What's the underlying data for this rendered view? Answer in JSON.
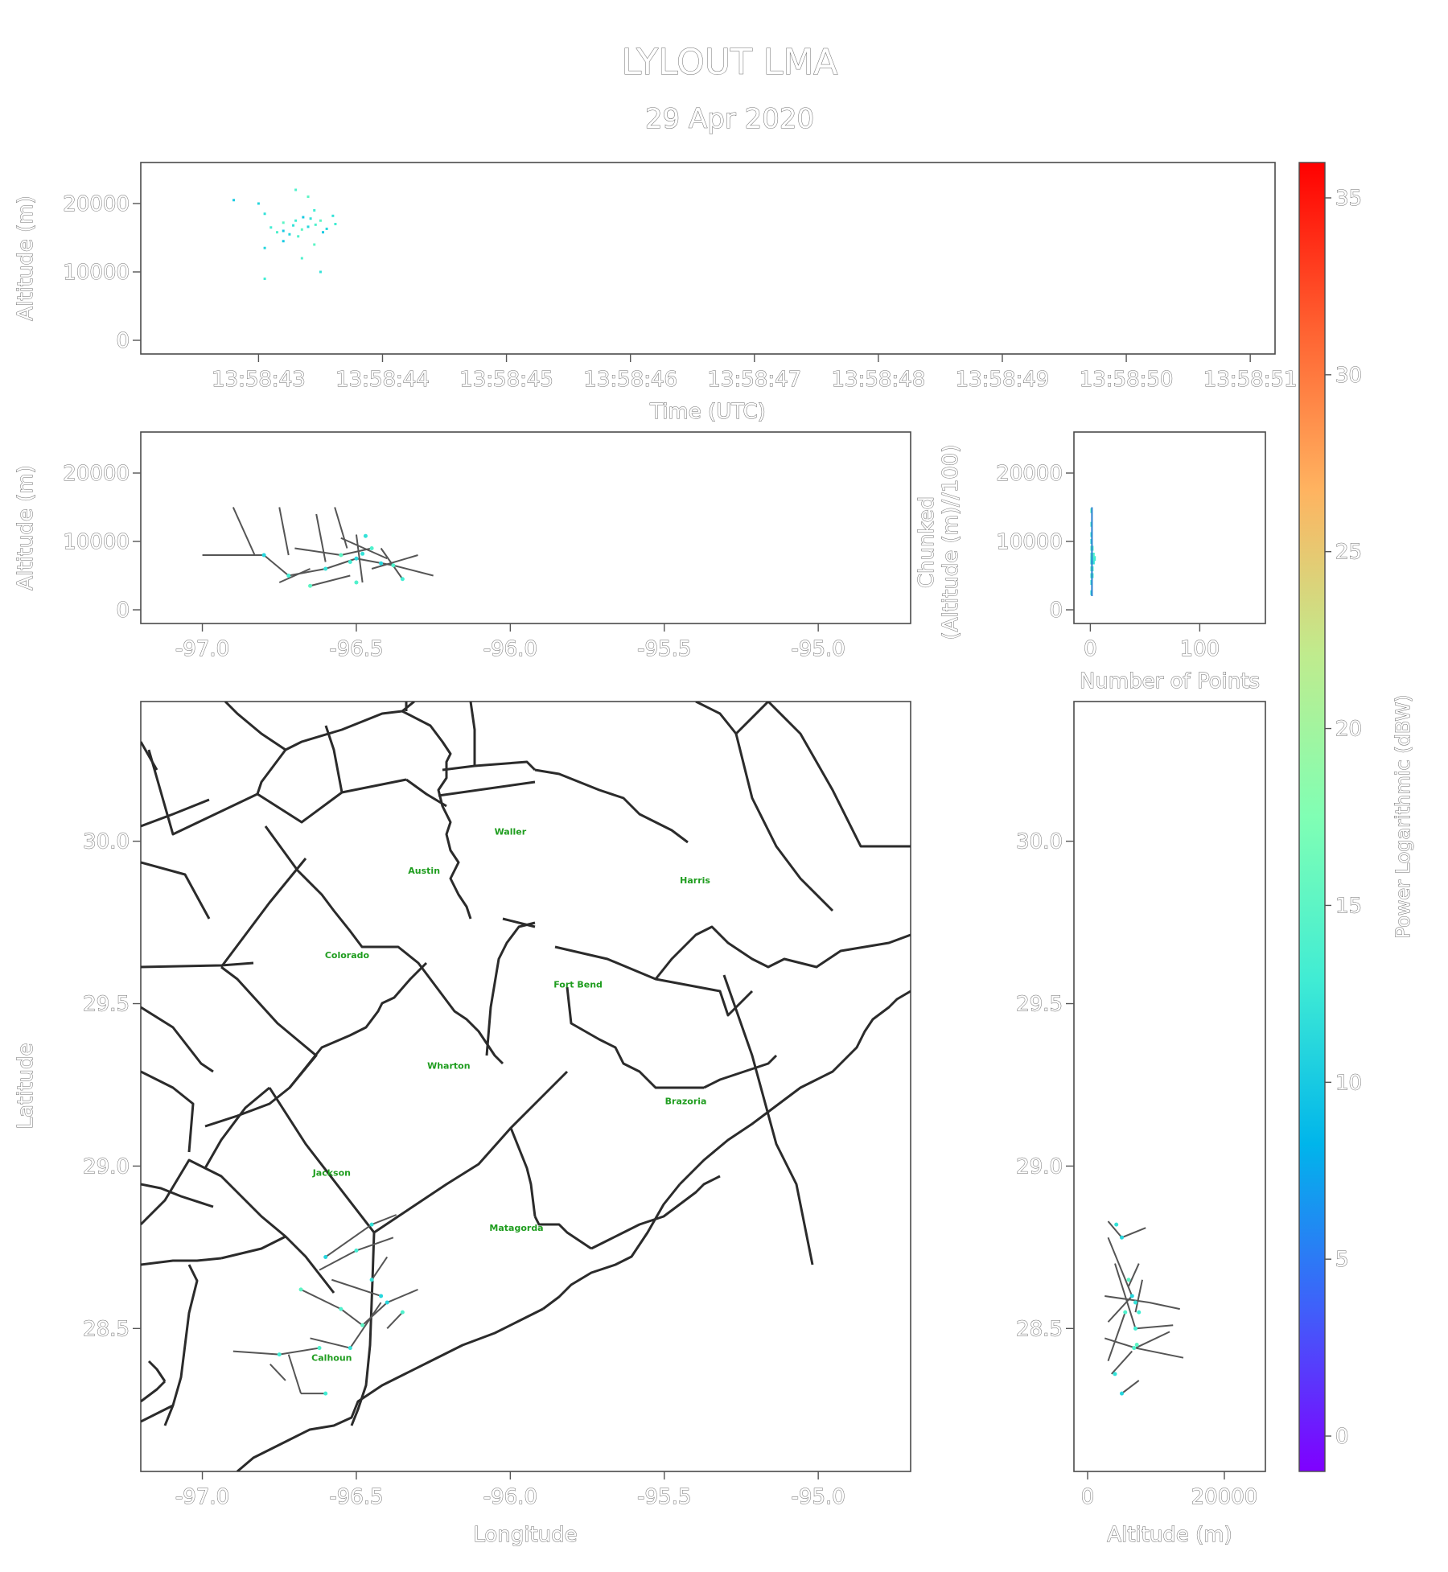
{
  "title": "LYLOUT LMA",
  "subtitle": "29 Apr 2020",
  "chart_data": [
    {
      "type": "scatter",
      "panel": "time-altitude",
      "xlabel": "Time (UTC)",
      "ylabel": "Altitude (m)",
      "x_ticks": [
        "13:58:43",
        "13:58:44",
        "13:58:45",
        "13:58:46",
        "13:58:47",
        "13:58:48",
        "13:58:49",
        "13:58:50",
        "13:58:51"
      ],
      "y_ticks": [
        "0",
        "10000",
        "20000"
      ],
      "ylim": [
        -2000,
        26000
      ],
      "points": [
        {
          "t": 42.8,
          "alt": 20500
        },
        {
          "t": 43.0,
          "alt": 20000
        },
        {
          "t": 43.05,
          "alt": 18500
        },
        {
          "t": 43.1,
          "alt": 16500
        },
        {
          "t": 43.15,
          "alt": 15800
        },
        {
          "t": 43.2,
          "alt": 17200
        },
        {
          "t": 43.2,
          "alt": 16000
        },
        {
          "t": 43.25,
          "alt": 15500
        },
        {
          "t": 43.28,
          "alt": 16800
        },
        {
          "t": 43.3,
          "alt": 17500
        },
        {
          "t": 43.32,
          "alt": 15200
        },
        {
          "t": 43.35,
          "alt": 16200
        },
        {
          "t": 43.36,
          "alt": 18000
        },
        {
          "t": 43.4,
          "alt": 16600
        },
        {
          "t": 43.42,
          "alt": 17800
        },
        {
          "t": 43.45,
          "alt": 19000
        },
        {
          "t": 43.46,
          "alt": 16900
        },
        {
          "t": 43.5,
          "alt": 17500
        },
        {
          "t": 43.52,
          "alt": 15800
        },
        {
          "t": 43.55,
          "alt": 16300
        },
        {
          "t": 43.6,
          "alt": 18200
        },
        {
          "t": 43.62,
          "alt": 17000
        },
        {
          "t": 43.3,
          "alt": 22000
        },
        {
          "t": 43.4,
          "alt": 21000
        },
        {
          "t": 43.2,
          "alt": 14500
        },
        {
          "t": 43.05,
          "alt": 13500
        },
        {
          "t": 43.5,
          "alt": 10000
        },
        {
          "t": 43.05,
          "alt": 9000
        },
        {
          "t": 43.35,
          "alt": 12000
        },
        {
          "t": 43.45,
          "alt": 14000
        }
      ]
    },
    {
      "type": "line",
      "panel": "longitude-altitude",
      "xlabel": "",
      "ylabel": "Altitude (m)",
      "x_ticks": [
        "-97.0",
        "-96.5",
        "-96.0",
        "-95.5",
        "-95.0"
      ],
      "y_ticks": [
        "0",
        "10000",
        "20000"
      ],
      "xlim": [
        -97.2,
        -94.7
      ],
      "ylim": [
        -2000,
        26000
      ],
      "segments": [
        [
          [
            -96.9,
            15000
          ],
          [
            -96.83,
            8000
          ]
        ],
        [
          [
            -96.75,
            15000
          ],
          [
            -96.72,
            8000
          ]
        ],
        [
          [
            -96.63,
            14000
          ],
          [
            -96.6,
            7000
          ]
        ],
        [
          [
            -96.57,
            15000
          ],
          [
            -96.53,
            9000
          ]
        ],
        [
          [
            -97.0,
            8000
          ],
          [
            -96.8,
            8000
          ]
        ],
        [
          [
            -96.8,
            8000
          ],
          [
            -96.72,
            5000
          ]
        ],
        [
          [
            -96.72,
            5000
          ],
          [
            -96.6,
            6000
          ]
        ],
        [
          [
            -96.6,
            6000
          ],
          [
            -96.5,
            7500
          ]
        ],
        [
          [
            -96.5,
            7500
          ],
          [
            -96.38,
            6500
          ]
        ],
        [
          [
            -96.38,
            6500
          ],
          [
            -96.25,
            5000
          ]
        ],
        [
          [
            -96.7,
            9000
          ],
          [
            -96.55,
            8000
          ]
        ],
        [
          [
            -96.55,
            8000
          ],
          [
            -96.45,
            9000
          ]
        ],
        [
          [
            -96.5,
            11000
          ],
          [
            -96.48,
            4000
          ]
        ],
        [
          [
            -96.42,
            9000
          ],
          [
            -96.35,
            4500
          ]
        ],
        [
          [
            -96.65,
            3500
          ],
          [
            -96.52,
            5000
          ]
        ],
        [
          [
            -96.75,
            4000
          ],
          [
            -96.65,
            6000
          ]
        ],
        [
          [
            -96.55,
            10500
          ],
          [
            -96.4,
            7500
          ]
        ],
        [
          [
            -96.45,
            6000
          ],
          [
            -96.3,
            8000
          ]
        ]
      ],
      "points": [
        {
          "lon": -96.5,
          "alt": 7500
        },
        {
          "lon": -96.48,
          "alt": 8200
        },
        {
          "lon": -96.52,
          "alt": 7000
        },
        {
          "lon": -96.45,
          "alt": 9000
        },
        {
          "lon": -96.55,
          "alt": 8000
        },
        {
          "lon": -96.42,
          "alt": 6800
        },
        {
          "lon": -96.6,
          "alt": 6000
        },
        {
          "lon": -96.72,
          "alt": 5000
        },
        {
          "lon": -96.38,
          "alt": 6500
        },
        {
          "lon": -96.65,
          "alt": 3500
        },
        {
          "lon": -96.8,
          "alt": 8000
        },
        {
          "lon": -96.47,
          "alt": 10800
        },
        {
          "lon": -96.35,
          "alt": 4500
        },
        {
          "lon": -96.5,
          "alt": 4000
        }
      ]
    },
    {
      "type": "histogram",
      "panel": "altitude-count",
      "xlabel": "Number of Points",
      "ylabel": "Chunked (Altitude (m)//100)",
      "x_ticks": [
        "0",
        "100"
      ],
      "y_ticks": [
        "0",
        "10000",
        "20000"
      ],
      "xlim": [
        -15,
        160
      ],
      "ylim": [
        -2000,
        26000
      ],
      "bins": [
        {
          "alt": 2500,
          "count": 1
        },
        {
          "alt": 4000,
          "count": 2
        },
        {
          "alt": 5000,
          "count": 3
        },
        {
          "alt": 6000,
          "count": 3
        },
        {
          "alt": 7000,
          "count": 4
        },
        {
          "alt": 7500,
          "count": 5
        },
        {
          "alt": 8000,
          "count": 4
        },
        {
          "alt": 9000,
          "count": 3
        },
        {
          "alt": 10000,
          "count": 2
        },
        {
          "alt": 11000,
          "count": 1
        },
        {
          "alt": 12500,
          "count": 1
        },
        {
          "alt": 14500,
          "count": 1
        }
      ]
    },
    {
      "type": "map",
      "panel": "plan-view",
      "xlabel": "Longitude",
      "ylabel": "Latitude",
      "x_ticks": [
        "-97.0",
        "-96.5",
        "-96.0",
        "-95.5",
        "-95.0"
      ],
      "y_ticks": [
        "30.0",
        "29.5",
        "29.0",
        "28.5"
      ],
      "xlim": [
        -97.2,
        -94.7
      ],
      "ylim": [
        28.06,
        30.43
      ],
      "county_labels": [
        {
          "name": "Waller",
          "lon": -96.0,
          "lat": 30.02
        },
        {
          "name": "Austin",
          "lon": -96.28,
          "lat": 29.9
        },
        {
          "name": "Harris",
          "lon": -95.4,
          "lat": 29.87
        },
        {
          "name": "Colorado",
          "lon": -96.53,
          "lat": 29.64
        },
        {
          "name": "Fort Bend",
          "lon": -95.78,
          "lat": 29.55
        },
        {
          "name": "Wharton",
          "lon": -96.2,
          "lat": 29.3
        },
        {
          "name": "Brazoria",
          "lon": -95.43,
          "lat": 29.19
        },
        {
          "name": "Jackson",
          "lon": -96.58,
          "lat": 28.97
        },
        {
          "name": "Matagorda",
          "lon": -95.98,
          "lat": 28.8
        },
        {
          "name": "Calhoun",
          "lon": -96.58,
          "lat": 28.4
        }
      ],
      "segments": [
        [
          [
            -96.6,
            28.72
          ],
          [
            -96.45,
            28.82
          ]
        ],
        [
          [
            -96.45,
            28.82
          ],
          [
            -96.37,
            28.85
          ]
        ],
        [
          [
            -96.62,
            28.68
          ],
          [
            -96.5,
            28.74
          ]
        ],
        [
          [
            -96.5,
            28.74
          ],
          [
            -96.38,
            28.78
          ]
        ],
        [
          [
            -96.68,
            28.62
          ],
          [
            -96.55,
            28.56
          ]
        ],
        [
          [
            -96.55,
            28.56
          ],
          [
            -96.48,
            28.51
          ]
        ],
        [
          [
            -96.48,
            28.51
          ],
          [
            -96.4,
            28.58
          ]
        ],
        [
          [
            -96.4,
            28.58
          ],
          [
            -96.3,
            28.62
          ]
        ],
        [
          [
            -96.65,
            28.47
          ],
          [
            -96.52,
            28.44
          ]
        ],
        [
          [
            -96.52,
            28.44
          ],
          [
            -96.42,
            28.58
          ]
        ],
        [
          [
            -96.9,
            28.43
          ],
          [
            -96.75,
            28.42
          ]
        ],
        [
          [
            -96.75,
            28.42
          ],
          [
            -96.62,
            28.44
          ]
        ],
        [
          [
            -96.72,
            28.42
          ],
          [
            -96.68,
            28.3
          ]
        ],
        [
          [
            -96.68,
            28.3
          ],
          [
            -96.6,
            28.3
          ]
        ],
        [
          [
            -96.78,
            28.39
          ],
          [
            -96.73,
            28.34
          ]
        ],
        [
          [
            -96.58,
            28.65
          ],
          [
            -96.42,
            28.6
          ]
        ],
        [
          [
            -96.45,
            28.65
          ],
          [
            -96.4,
            28.72
          ]
        ],
        [
          [
            -96.4,
            28.5
          ],
          [
            -96.35,
            28.55
          ]
        ]
      ],
      "points": [
        {
          "lon": -96.6,
          "lat": 28.72
        },
        {
          "lon": -96.45,
          "lat": 28.82
        },
        {
          "lon": -96.5,
          "lat": 28.74
        },
        {
          "lon": -96.55,
          "lat": 28.56
        },
        {
          "lon": -96.48,
          "lat": 28.51
        },
        {
          "lon": -96.4,
          "lat": 28.58
        },
        {
          "lon": -96.52,
          "lat": 28.44
        },
        {
          "lon": -96.75,
          "lat": 28.42
        },
        {
          "lon": -96.62,
          "lat": 28.44
        },
        {
          "lon": -96.68,
          "lat": 28.62
        },
        {
          "lon": -96.42,
          "lat": 28.6
        },
        {
          "lon": -96.45,
          "lat": 28.65
        },
        {
          "lon": -96.6,
          "lat": 28.3
        },
        {
          "lon": -96.35,
          "lat": 28.55
        }
      ]
    },
    {
      "type": "line",
      "panel": "altitude-latitude",
      "xlabel": "Altitude (m)",
      "ylabel": "",
      "x_ticks": [
        "0",
        "20000"
      ],
      "xlim": [
        -2000,
        26000
      ],
      "ylim": [
        28.06,
        30.43
      ],
      "segments": [
        [
          [
            3000,
            28.83
          ],
          [
            5000,
            28.78
          ]
        ],
        [
          [
            5000,
            28.78
          ],
          [
            8500,
            28.81
          ]
        ],
        [
          [
            3000,
            28.78
          ],
          [
            6500,
            28.6
          ]
        ],
        [
          [
            6500,
            28.6
          ],
          [
            3000,
            28.52
          ]
        ],
        [
          [
            2500,
            28.6
          ],
          [
            9000,
            28.58
          ]
        ],
        [
          [
            9000,
            28.58
          ],
          [
            13500,
            28.56
          ]
        ],
        [
          [
            4000,
            28.7
          ],
          [
            7000,
            28.5
          ]
        ],
        [
          [
            7000,
            28.5
          ],
          [
            12500,
            28.51
          ]
        ],
        [
          [
            2500,
            28.47
          ],
          [
            7000,
            28.44
          ]
        ],
        [
          [
            7000,
            28.44
          ],
          [
            14000,
            28.41
          ]
        ],
        [
          [
            7000,
            28.44
          ],
          [
            12000,
            28.49
          ]
        ],
        [
          [
            3500,
            28.36
          ],
          [
            6500,
            28.43
          ]
        ],
        [
          [
            5000,
            28.3
          ],
          [
            7500,
            28.34
          ]
        ],
        [
          [
            3000,
            28.4
          ],
          [
            5500,
            28.55
          ]
        ],
        [
          [
            8000,
            28.65
          ],
          [
            7000,
            28.55
          ]
        ],
        [
          [
            6000,
            28.63
          ],
          [
            7500,
            28.7
          ]
        ]
      ],
      "points": [
        {
          "alt": 6500,
          "lat": 28.6
        },
        {
          "alt": 7000,
          "lat": 28.58
        },
        {
          "alt": 7500,
          "lat": 28.55
        },
        {
          "alt": 6800,
          "lat": 28.44
        },
        {
          "alt": 7200,
          "lat": 28.45
        },
        {
          "alt": 5000,
          "lat": 28.78
        },
        {
          "alt": 4200,
          "lat": 28.82
        },
        {
          "alt": 7000,
          "lat": 28.5
        },
        {
          "alt": 5500,
          "lat": 28.55
        },
        {
          "alt": 6000,
          "lat": 28.65
        },
        {
          "alt": 5000,
          "lat": 28.3
        },
        {
          "alt": 4000,
          "lat": 28.36
        }
      ]
    },
    {
      "type": "colorbar",
      "panel": "colorbar",
      "label": "Power Logarithmic (dBW)",
      "range": [
        -1,
        36
      ],
      "ticks": [
        "0",
        "5",
        "10",
        "15",
        "20",
        "25",
        "30",
        "35"
      ],
      "colors": [
        "#7f00ff",
        "#3f60fa",
        "#00b5eb",
        "#40ecd4",
        "#80ffb4",
        "#c0eb8d",
        "#ffb360",
        "#ff6030",
        "#ff0000"
      ]
    }
  ]
}
